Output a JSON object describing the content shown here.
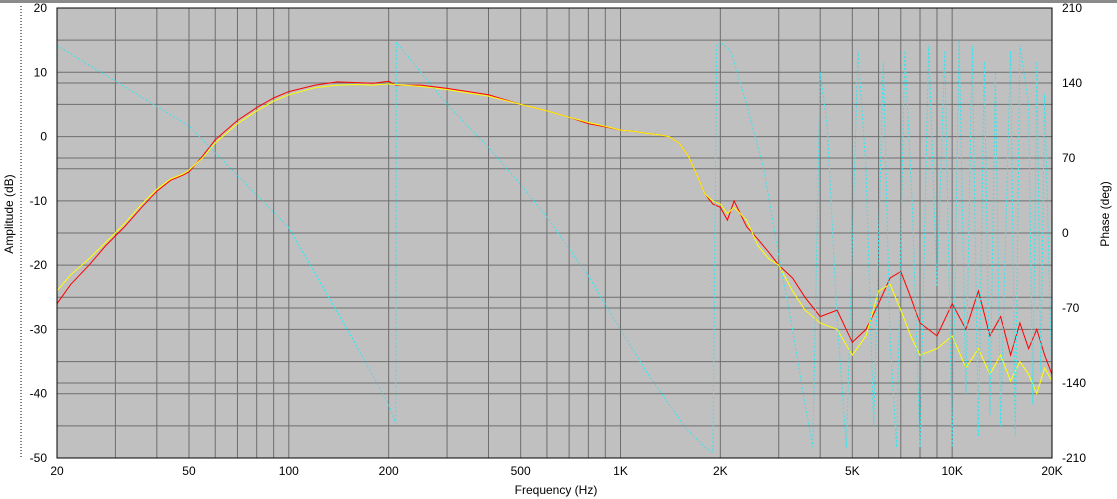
{
  "chart_data": {
    "type": "line",
    "title": "",
    "xlabel": "Frequency (Hz)",
    "ylabel_left": "Amplitude (dB)",
    "ylabel_right": "Phase (deg)",
    "x_scale": "log",
    "xlim": [
      20,
      20000
    ],
    "ylim_left": [
      -50,
      20
    ],
    "ylim_right": [
      -210,
      210
    ],
    "grid": true,
    "legend": "none",
    "plot_background": "#c0c0c0",
    "grid_color": "#6e6e6e",
    "x_ticks": [
      {
        "value": 20,
        "label": "20"
      },
      {
        "value": 50,
        "label": "50"
      },
      {
        "value": 100,
        "label": "100"
      },
      {
        "value": 200,
        "label": "200"
      },
      {
        "value": 500,
        "label": "500"
      },
      {
        "value": 1000,
        "label": "1K"
      },
      {
        "value": 2000,
        "label": "2K"
      },
      {
        "value": 5000,
        "label": "5K"
      },
      {
        "value": 10000,
        "label": "10K"
      },
      {
        "value": 20000,
        "label": "20K"
      }
    ],
    "y_ticks_left": [
      {
        "value": 20,
        "label": "20"
      },
      {
        "value": 10,
        "label": "10"
      },
      {
        "value": 0,
        "label": "0"
      },
      {
        "value": -10,
        "label": "-10"
      },
      {
        "value": -20,
        "label": "-20"
      },
      {
        "value": -30,
        "label": "-30"
      },
      {
        "value": -40,
        "label": "-40"
      },
      {
        "value": -50,
        "label": "-50"
      }
    ],
    "y_ticks_right": [
      {
        "value": 210,
        "label": "210"
      },
      {
        "value": 140,
        "label": "140"
      },
      {
        "value": 70,
        "label": "70"
      },
      {
        "value": 0,
        "label": "0"
      },
      {
        "value": -70,
        "label": "-70"
      },
      {
        "value": -140,
        "label": "-140"
      },
      {
        "value": -210,
        "label": "-210"
      }
    ],
    "series": [
      {
        "axis": "left",
        "color": "#ff0000",
        "width": 1,
        "x": [
          20,
          22,
          25,
          28,
          32,
          36,
          40,
          44,
          48,
          50,
          55,
          60,
          70,
          80,
          90,
          100,
          120,
          140,
          160,
          180,
          200,
          210,
          250,
          300,
          400,
          500,
          600,
          700,
          800,
          900,
          1000,
          1100,
          1200,
          1300,
          1400,
          1500,
          1600,
          1700,
          1800,
          1900,
          2000,
          2100,
          2200,
          2400,
          2600,
          2800,
          3000,
          3300,
          3600,
          4000,
          4500,
          5000,
          5500,
          6000,
          6500,
          7000,
          7500,
          8000,
          9000,
          10000,
          11000,
          12000,
          13000,
          14000,
          15000,
          16000,
          17000,
          18000,
          19000,
          20000
        ],
        "y": [
          -26,
          -23,
          -20,
          -17,
          -14,
          -11,
          -8.5,
          -6.8,
          -6,
          -5.5,
          -3,
          -0.5,
          2.5,
          4.5,
          6,
          7,
          8,
          8.5,
          8.4,
          8.3,
          8.6,
          8,
          8,
          7.5,
          6.5,
          5,
          4,
          3,
          2,
          1.5,
          1,
          0.8,
          0.5,
          0.3,
          0,
          -1,
          -3,
          -6,
          -9,
          -10.5,
          -11,
          -13,
          -10,
          -14,
          -16,
          -18,
          -20,
          -22,
          -25,
          -28,
          -27,
          -32,
          -30,
          -26,
          -22,
          -21,
          -25,
          -29,
          -31,
          -26,
          -30,
          -24,
          -31,
          -28,
          -34,
          -29,
          -33,
          -30,
          -34,
          -37
        ]
      },
      {
        "axis": "left",
        "color": "#ffff00",
        "width": 1,
        "x": [
          20,
          22,
          25,
          28,
          32,
          36,
          40,
          44,
          48,
          50,
          55,
          60,
          70,
          80,
          90,
          100,
          120,
          140,
          160,
          180,
          200,
          210,
          250,
          300,
          400,
          500,
          600,
          700,
          800,
          900,
          1000,
          1100,
          1200,
          1300,
          1400,
          1500,
          1600,
          1700,
          1800,
          1900,
          2000,
          2100,
          2200,
          2400,
          2600,
          2800,
          3000,
          3300,
          3600,
          4000,
          4500,
          5000,
          5500,
          6000,
          6500,
          7000,
          7500,
          8000,
          9000,
          10000,
          11000,
          12000,
          13000,
          14000,
          15000,
          16000,
          17000,
          18000,
          19000,
          20000
        ],
        "y": [
          -24,
          -21.5,
          -19,
          -16.5,
          -13.5,
          -10.5,
          -8.2,
          -6.6,
          -5.8,
          -5.2,
          -3.3,
          -1,
          2,
          4,
          5.5,
          6.5,
          7.6,
          8,
          8.1,
          8,
          8.2,
          8.1,
          7.8,
          7.3,
          6.3,
          5,
          4,
          3,
          2.2,
          1.6,
          1,
          0.8,
          0.5,
          0.3,
          0,
          -1,
          -3,
          -6,
          -9,
          -10,
          -10.5,
          -12,
          -11,
          -13,
          -17,
          -19,
          -20,
          -24,
          -27,
          -29,
          -30,
          -34,
          -31,
          -24,
          -23,
          -27,
          -31,
          -34,
          -33,
          -31,
          -36,
          -33,
          -37,
          -34,
          -38,
          -35,
          -37,
          -40,
          -36,
          -38
        ]
      },
      {
        "axis": "right",
        "color": "#33e5f0",
        "width": 1,
        "dash": "2,2",
        "x": [
          20,
          50,
          100,
          150,
          200,
          210,
          211,
          250,
          300,
          400,
          500,
          600,
          800,
          1000,
          1200,
          1400,
          1600,
          1800,
          1900,
          1950,
          2000,
          2150,
          2400,
          2700,
          3000,
          3300,
          3600,
          3800,
          4000,
          4200,
          4500,
          4800,
          5200,
          5500,
          5800,
          6200,
          6500,
          6800,
          7200,
          7600,
          8000,
          8500,
          9000,
          9500,
          10000,
          10500,
          11000,
          11500,
          12000,
          12500,
          13000,
          13500,
          14000,
          15000,
          15500,
          16000,
          17000,
          17500,
          18000,
          18500,
          19000,
          20000
        ],
        "y": [
          175,
          100,
          5,
          -90,
          -160,
          -178,
          178,
          150,
          120,
          80,
          45,
          15,
          -40,
          -90,
          -130,
          -160,
          -185,
          -200,
          -205,
          175,
          178,
          170,
          120,
          60,
          -20,
          -90,
          -160,
          -200,
          150,
          100,
          -80,
          -200,
          170,
          60,
          -180,
          160,
          -100,
          -200,
          170,
          20,
          -200,
          175,
          -50,
          170,
          -200,
          180,
          -150,
          175,
          -190,
          160,
          -170,
          150,
          -180,
          170,
          -190,
          175,
          120,
          -160,
          160,
          -130,
          130,
          -140
        ]
      }
    ]
  }
}
